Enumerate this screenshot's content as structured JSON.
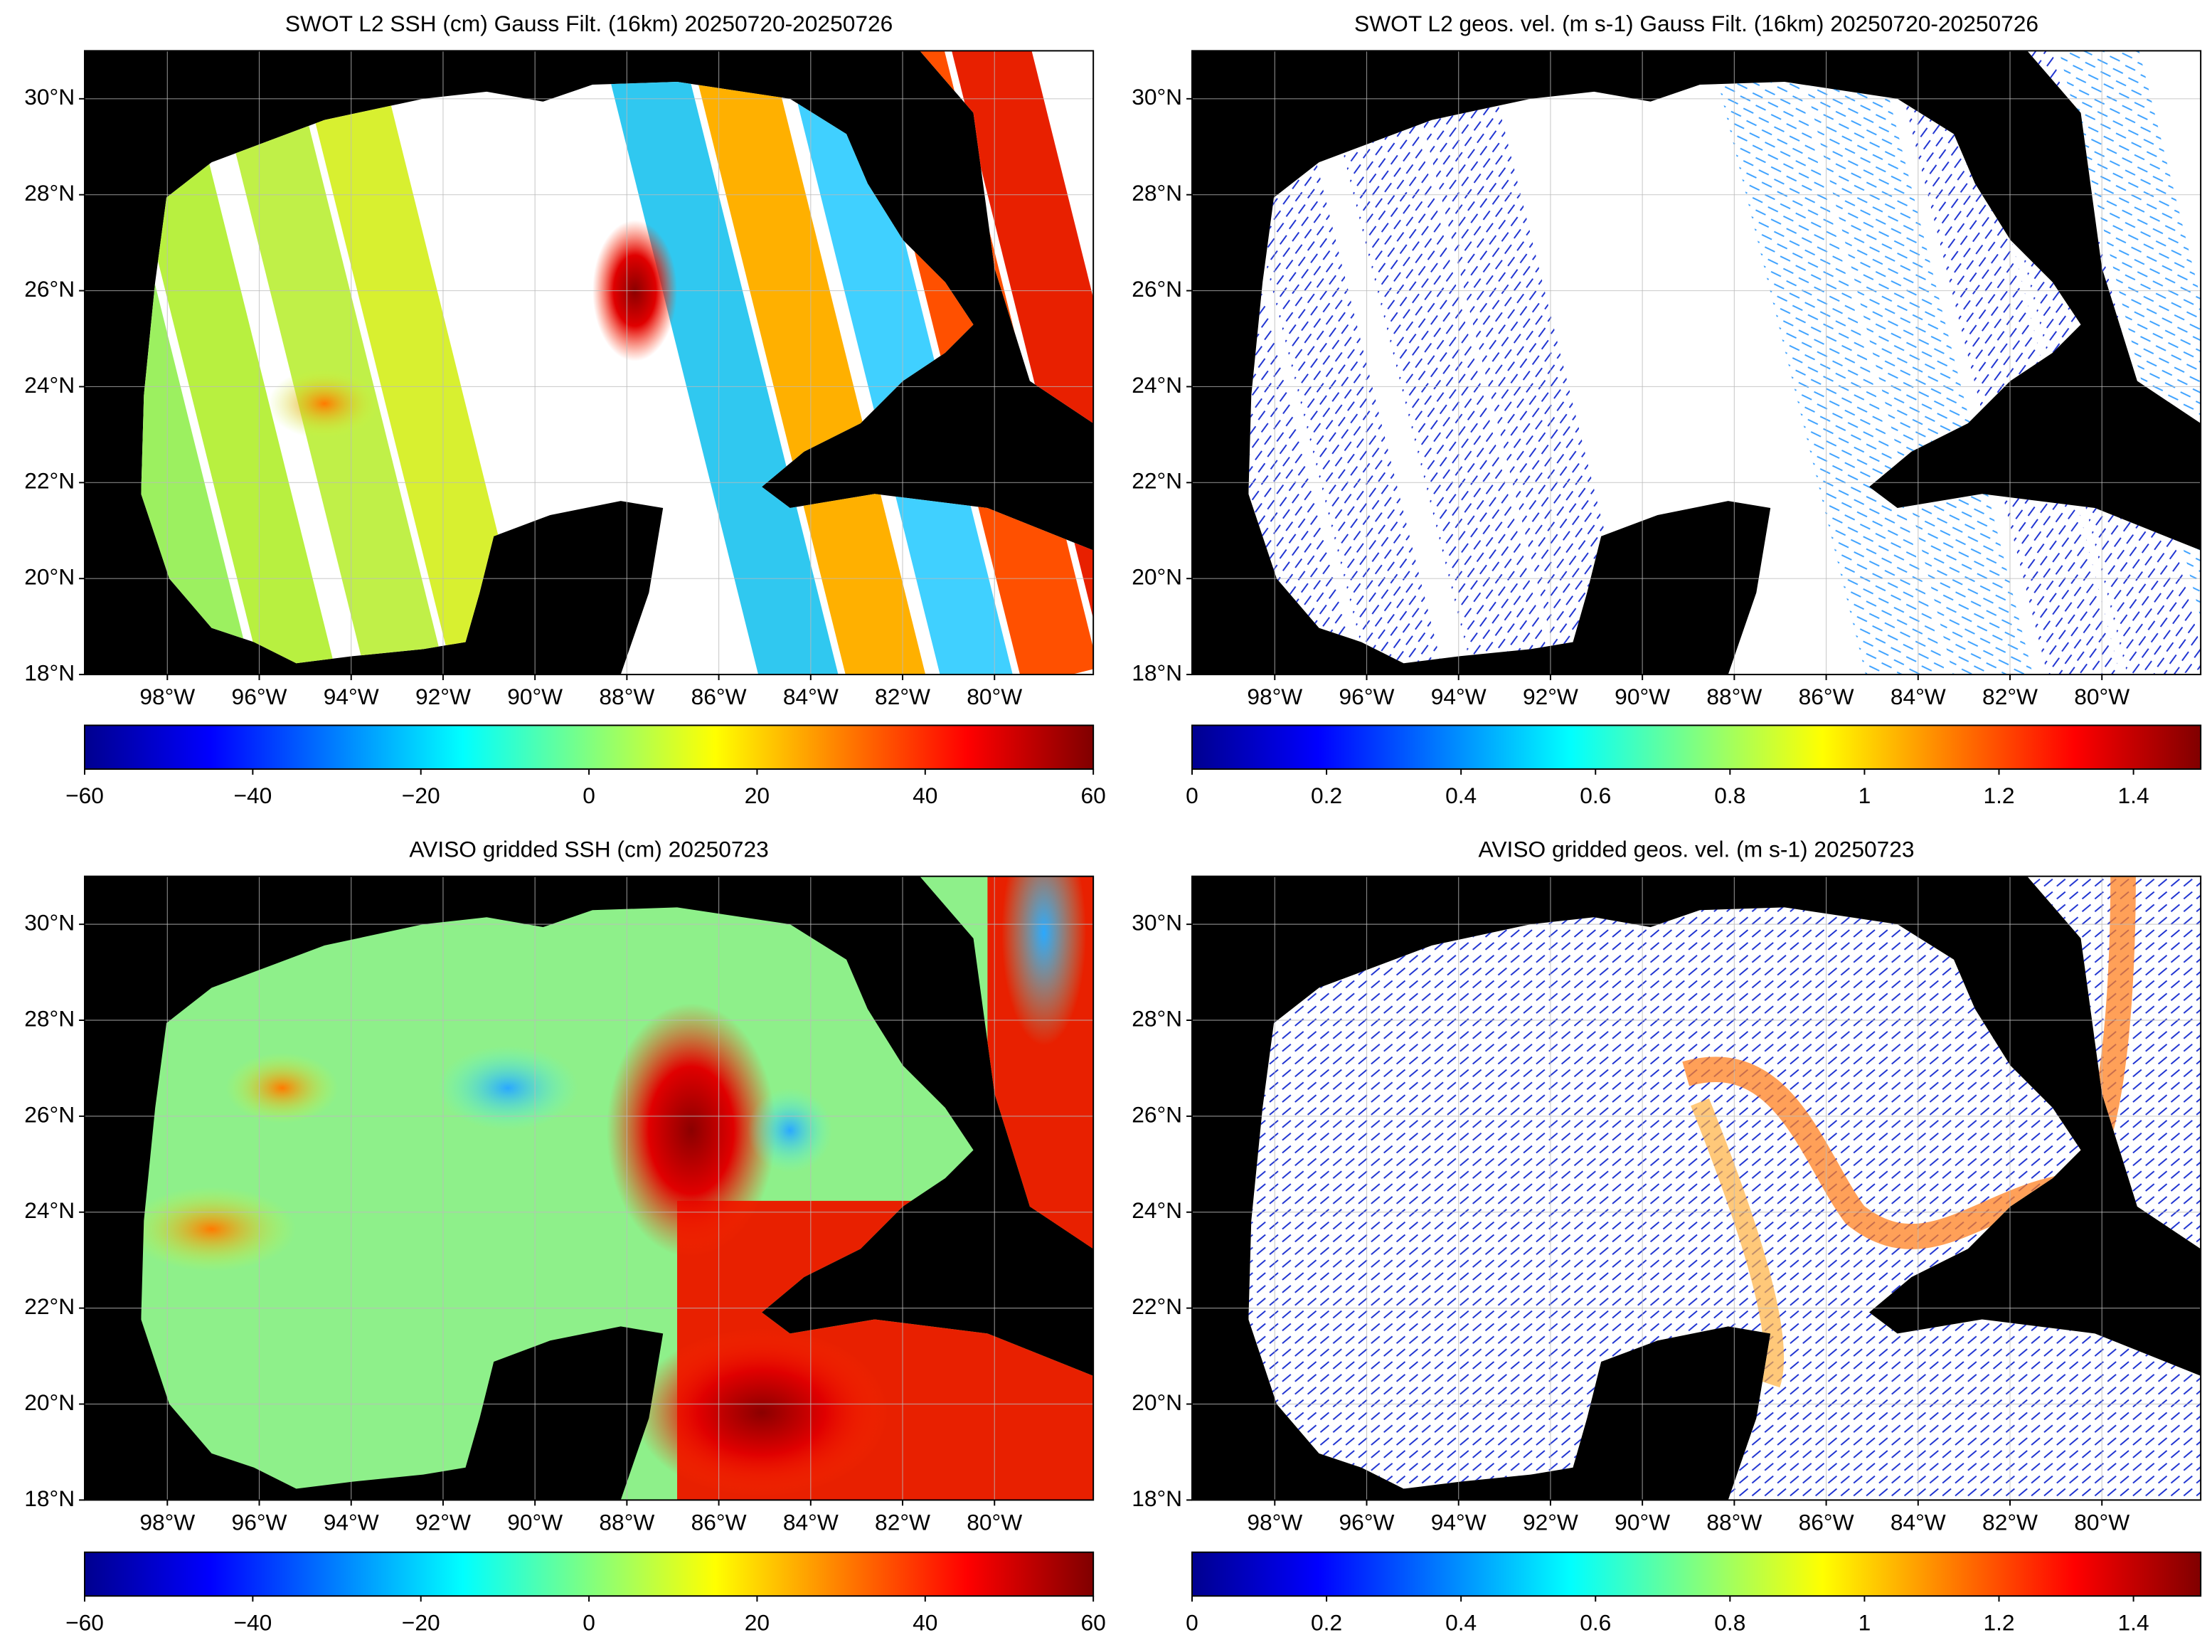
{
  "chart_data": [
    {
      "type": "map",
      "title": "SWOT L2 SSH (cm) Gauss Filt. (16km) 20250720-20250726",
      "fill": "swot-ssh",
      "xlim": [
        -99.8,
        -77.85
      ],
      "ylim": [
        18,
        31
      ],
      "xticks": [
        {
          "value": -98,
          "label": "98°W"
        },
        {
          "value": -96,
          "label": "96°W"
        },
        {
          "value": -94,
          "label": "94°W"
        },
        {
          "value": -92,
          "label": "92°W"
        },
        {
          "value": -90,
          "label": "90°W"
        },
        {
          "value": -88,
          "label": "88°W"
        },
        {
          "value": -86,
          "label": "86°W"
        },
        {
          "value": -84,
          "label": "84°W"
        },
        {
          "value": -82,
          "label": "82°W"
        },
        {
          "value": -80,
          "label": "80°W"
        }
      ],
      "yticks": [
        {
          "value": 18,
          "label": "18°N"
        },
        {
          "value": 20,
          "label": "20°N"
        },
        {
          "value": 22,
          "label": "22°N"
        },
        {
          "value": 24,
          "label": "24°N"
        },
        {
          "value": 26,
          "label": "26°N"
        },
        {
          "value": 28,
          "label": "28°N"
        },
        {
          "value": 30,
          "label": "30°N"
        }
      ],
      "colorbar": {
        "lim": [
          -60,
          60
        ],
        "ticks": [
          {
            "value": -60,
            "label": "−60"
          },
          {
            "value": -40,
            "label": "−40"
          },
          {
            "value": -20,
            "label": "−20"
          },
          0,
          20,
          40,
          60
        ]
      }
    },
    {
      "type": "map",
      "title": "SWOT L2 geos. vel. (m s-1) Gauss Filt. (16km) 20250720-20250726",
      "fill": "swot-vel",
      "xlim": [
        -99.8,
        -77.85
      ],
      "ylim": [
        18,
        31
      ],
      "xticks": [
        {
          "value": -98,
          "label": "98°W"
        },
        {
          "value": -96,
          "label": "96°W"
        },
        {
          "value": -94,
          "label": "94°W"
        },
        {
          "value": -92,
          "label": "92°W"
        },
        {
          "value": -90,
          "label": "90°W"
        },
        {
          "value": -88,
          "label": "88°W"
        },
        {
          "value": -86,
          "label": "86°W"
        },
        {
          "value": -84,
          "label": "84°W"
        },
        {
          "value": -82,
          "label": "82°W"
        },
        {
          "value": -80,
          "label": "80°W"
        }
      ],
      "yticks": [
        {
          "value": 18,
          "label": "18°N"
        },
        {
          "value": 20,
          "label": "20°N"
        },
        {
          "value": 22,
          "label": "22°N"
        },
        {
          "value": 24,
          "label": "24°N"
        },
        {
          "value": 26,
          "label": "26°N"
        },
        {
          "value": 28,
          "label": "28°N"
        },
        {
          "value": 30,
          "label": "30°N"
        }
      ],
      "colorbar": {
        "lim": [
          0,
          1.5
        ],
        "ticks": [
          0,
          0.2,
          0.4,
          0.6,
          0.8,
          1,
          1.2,
          1.4
        ]
      }
    },
    {
      "type": "map",
      "title": "AVISO gridded SSH (cm) 20250723",
      "fill": "aviso-ssh",
      "xlim": [
        -99.8,
        -77.85
      ],
      "ylim": [
        18,
        31
      ],
      "xticks": [
        {
          "value": -98,
          "label": "98°W"
        },
        {
          "value": -96,
          "label": "96°W"
        },
        {
          "value": -94,
          "label": "94°W"
        },
        {
          "value": -92,
          "label": "92°W"
        },
        {
          "value": -90,
          "label": "90°W"
        },
        {
          "value": -88,
          "label": "88°W"
        },
        {
          "value": -86,
          "label": "86°W"
        },
        {
          "value": -84,
          "label": "84°W"
        },
        {
          "value": -82,
          "label": "82°W"
        },
        {
          "value": -80,
          "label": "80°W"
        }
      ],
      "yticks": [
        {
          "value": 18,
          "label": "18°N"
        },
        {
          "value": 20,
          "label": "20°N"
        },
        {
          "value": 22,
          "label": "22°N"
        },
        {
          "value": 24,
          "label": "24°N"
        },
        {
          "value": 26,
          "label": "26°N"
        },
        {
          "value": 28,
          "label": "28°N"
        },
        {
          "value": 30,
          "label": "30°N"
        }
      ],
      "colorbar": {
        "lim": [
          -60,
          60
        ],
        "ticks": [
          {
            "value": -60,
            "label": "−60"
          },
          {
            "value": -40,
            "label": "−40"
          },
          {
            "value": -20,
            "label": "−20"
          },
          0,
          20,
          40,
          60
        ]
      }
    },
    {
      "type": "map",
      "title": "AVISO gridded geos. vel. (m s-1)  20250723",
      "fill": "aviso-vel",
      "xlim": [
        -99.8,
        -77.85
      ],
      "ylim": [
        18,
        31
      ],
      "xticks": [
        {
          "value": -98,
          "label": "98°W"
        },
        {
          "value": -96,
          "label": "96°W"
        },
        {
          "value": -94,
          "label": "94°W"
        },
        {
          "value": -92,
          "label": "92°W"
        },
        {
          "value": -90,
          "label": "90°W"
        },
        {
          "value": -88,
          "label": "88°W"
        },
        {
          "value": -86,
          "label": "86°W"
        },
        {
          "value": -84,
          "label": "84°W"
        },
        {
          "value": -82,
          "label": "82°W"
        },
        {
          "value": -80,
          "label": "80°W"
        }
      ],
      "yticks": [
        {
          "value": 18,
          "label": "18°N"
        },
        {
          "value": 20,
          "label": "20°N"
        },
        {
          "value": 22,
          "label": "22°N"
        },
        {
          "value": 24,
          "label": "24°N"
        },
        {
          "value": 26,
          "label": "26°N"
        },
        {
          "value": 28,
          "label": "28°N"
        },
        {
          "value": 30,
          "label": "30°N"
        }
      ],
      "colorbar": {
        "lim": [
          0,
          1.5
        ],
        "ticks": [
          0,
          0.2,
          0.4,
          0.6,
          0.8,
          1,
          1.2,
          1.4
        ]
      }
    }
  ]
}
